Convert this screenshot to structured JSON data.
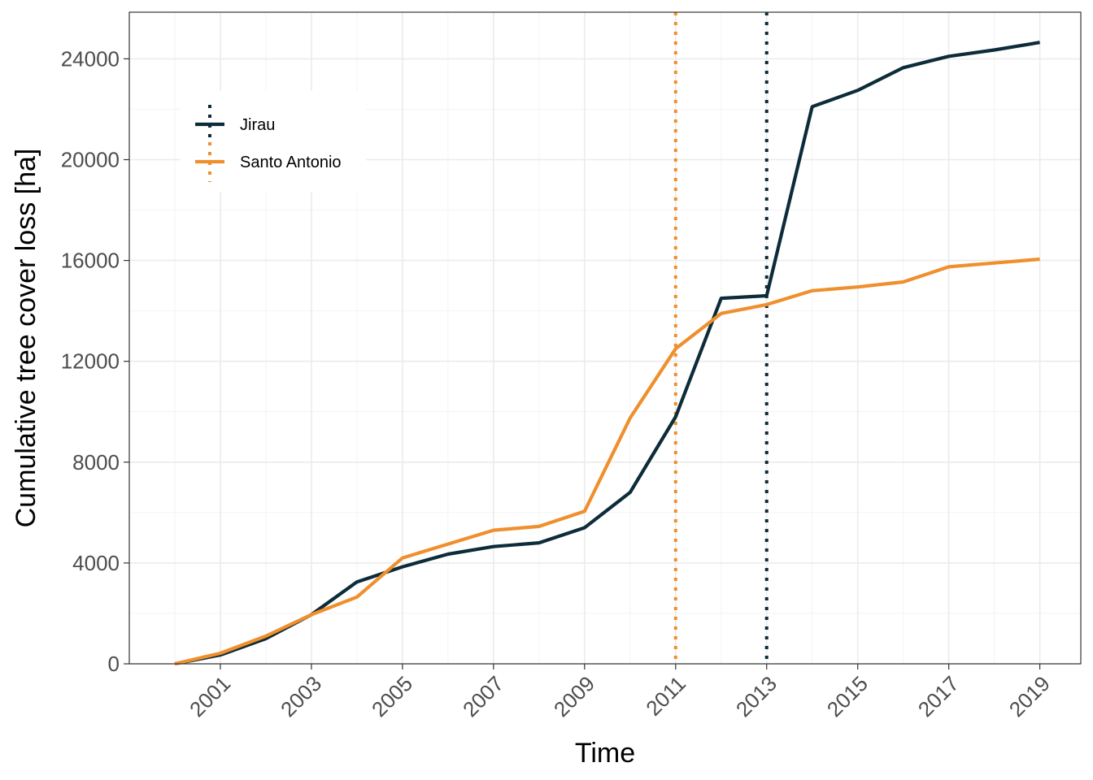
{
  "chart_data": {
    "type": "line",
    "xlabel": "Time",
    "ylabel": "Cumulative tree cover loss [ha]",
    "x": [
      2000,
      2001,
      2002,
      2003,
      2004,
      2005,
      2006,
      2007,
      2008,
      2009,
      2010,
      2011,
      2012,
      2013,
      2014,
      2015,
      2016,
      2017,
      2018,
      2019
    ],
    "x_ticks": [
      2001,
      2003,
      2005,
      2007,
      2009,
      2011,
      2013,
      2015,
      2017,
      2019
    ],
    "xlim": [
      1999,
      2019.9
    ],
    "y_ticks": [
      0,
      4000,
      8000,
      12000,
      16000,
      20000,
      24000
    ],
    "ylim": [
      0,
      25850
    ],
    "grid": true,
    "legend_position": "top-left",
    "series": [
      {
        "name": "Jirau",
        "color": "#0d2c3a",
        "values": [
          0,
          350,
          1000,
          1950,
          3250,
          3850,
          4350,
          4650,
          4800,
          5400,
          6800,
          9800,
          14500,
          14600,
          22100,
          22750,
          23650,
          24100,
          24350,
          24650
        ]
      },
      {
        "name": "Santo Antonio",
        "color": "#ef8f2d",
        "values": [
          0,
          420,
          1100,
          1950,
          2650,
          4200,
          4750,
          5300,
          5450,
          6050,
          9750,
          12500,
          13900,
          14250,
          14800,
          14950,
          15150,
          15750,
          15900,
          16050
        ]
      }
    ],
    "vlines": [
      {
        "series": "Santo Antonio",
        "x": 2011,
        "color": "#ef8f2d",
        "style": "dotted"
      },
      {
        "series": "Jirau",
        "x": 2013,
        "color": "#0d2c3a",
        "style": "dotted"
      }
    ]
  }
}
